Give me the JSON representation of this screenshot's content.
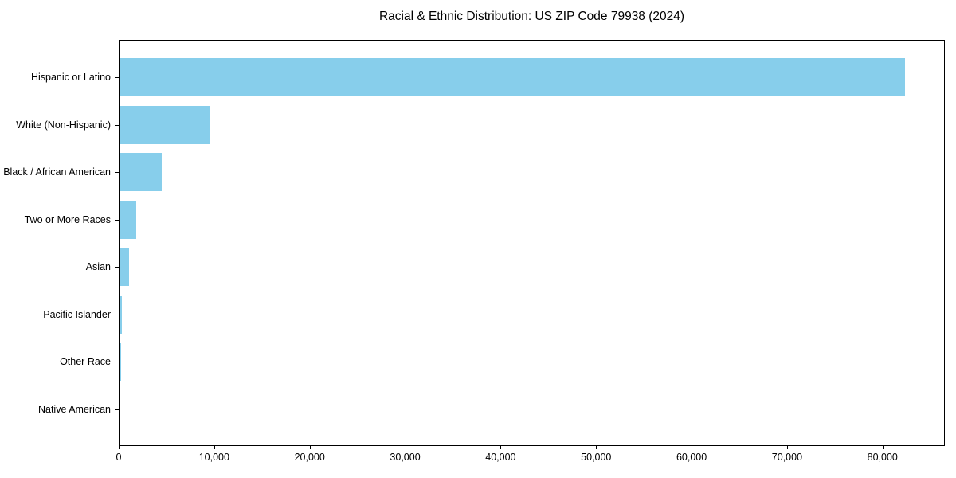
{
  "chart_data": {
    "type": "bar",
    "orientation": "horizontal",
    "title": "Racial & Ethnic Distribution: US ZIP Code 79938 (2024)",
    "categories": [
      "Hispanic or Latino",
      "White (Non-Hispanic)",
      "Black / African American",
      "Two or More Races",
      "Asian",
      "Pacific Islander",
      "Other Race",
      "Native American"
    ],
    "values": [
      82250,
      9500,
      4400,
      1750,
      1000,
      280,
      190,
      80
    ],
    "bar_color": "#87CEEB",
    "xlabel": "",
    "ylabel": "",
    "xlim": [
      0,
      86360
    ],
    "xticks": [
      0,
      10000,
      20000,
      30000,
      40000,
      50000,
      60000,
      70000,
      80000
    ],
    "xtick_labels": [
      "0",
      "10,000",
      "20,000",
      "30,000",
      "40,000",
      "50,000",
      "60,000",
      "70,000",
      "80,000"
    ],
    "grid": false,
    "legend": null,
    "frame_color": "#000000",
    "text_color": "#000000",
    "background_color": "#ffffff"
  }
}
